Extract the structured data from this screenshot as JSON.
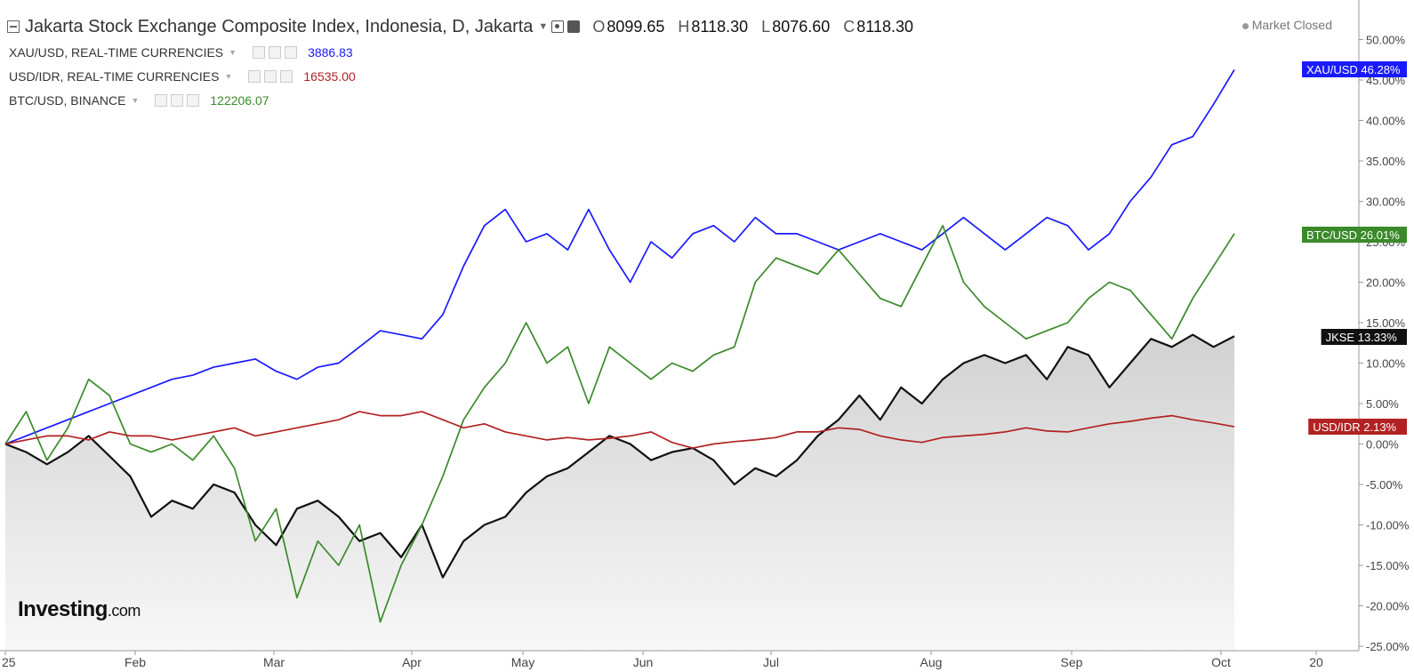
{
  "header": {
    "title": "Jakarta Stock Exchange Composite Index, Indonesia, D, Jakarta",
    "ohlc": [
      {
        "key": "O",
        "value": "8099.65"
      },
      {
        "key": "H",
        "value": "8118.30"
      },
      {
        "key": "L",
        "value": "8076.60"
      },
      {
        "key": "C",
        "value": "8118.30"
      }
    ],
    "status": "Market Closed"
  },
  "legend": [
    {
      "label": "XAU/USD, REAL-TIME CURRENCIES",
      "value": "3886.83",
      "color": "#1a1aff"
    },
    {
      "label": "USD/IDR, REAL-TIME CURRENCIES",
      "value": "16535.00",
      "color": "#b22222"
    },
    {
      "label": "BTC/USD, BINANCE",
      "value": "122206.07",
      "color": "#3a8a2a"
    }
  ],
  "watermark": {
    "brand": "Investing",
    "suffix": ".com"
  },
  "chart_data": {
    "type": "line",
    "x_ticks": [
      "25",
      "Feb",
      "Mar",
      "Apr",
      "May",
      "Jun",
      "Jul",
      "Aug",
      "Sep",
      "Oct",
      "20"
    ],
    "y_ticks": [
      "50.00%",
      "45.00%",
      "40.00%",
      "35.00%",
      "30.00%",
      "25.00%",
      "20.00%",
      "15.00%",
      "10.00%",
      "5.00%",
      "0.00%",
      "-5.00%",
      "-10.00%",
      "-15.00%",
      "-20.00%",
      "-25.00%"
    ],
    "ylim": [
      -25,
      50
    ],
    "grid": false,
    "series": [
      {
        "name": "JKSE",
        "tag": "JKSE",
        "end_label": "13.33%",
        "color": "#111111",
        "fill": true,
        "values": [
          0,
          -1,
          -2.5,
          -1,
          1,
          -1.5,
          -4,
          -9,
          -7,
          -8,
          -5,
          -6,
          -10,
          -12.5,
          -8,
          -7,
          -9,
          -12,
          -11,
          -14,
          -10,
          -16.5,
          -12,
          -10,
          -9,
          -6,
          -4,
          -3,
          -1,
          1,
          0,
          -2,
          -1,
          -0.5,
          -2,
          -5,
          -3,
          -4,
          -2,
          1,
          3,
          6,
          3,
          7,
          5,
          8,
          10,
          11,
          10,
          11,
          8,
          12,
          11,
          7,
          10,
          13,
          12,
          13.5,
          12,
          13.33
        ]
      },
      {
        "name": "XAU/USD",
        "tag": "XAU/USD",
        "end_label": "46.28%",
        "color": "#1a1aff",
        "values": [
          0,
          1,
          2,
          3,
          4,
          5,
          6,
          7,
          8,
          8.5,
          9.5,
          10,
          10.5,
          9,
          8,
          9.5,
          10,
          12,
          14,
          13.5,
          13,
          16,
          22,
          27,
          29,
          25,
          26,
          24,
          29,
          24,
          20,
          25,
          23,
          26,
          27,
          25,
          28,
          26,
          26,
          25,
          24,
          25,
          26,
          25,
          24,
          26,
          28,
          26,
          24,
          26,
          28,
          27,
          24,
          26,
          30,
          33,
          37,
          38,
          42,
          46.28
        ]
      },
      {
        "name": "BTC/USD",
        "tag": "BTC/USD",
        "end_label": "26.01%",
        "color": "#3a8a2a",
        "values": [
          0,
          4,
          -2,
          2,
          8,
          6,
          0,
          -1,
          0,
          -2,
          1,
          -3,
          -12,
          -8,
          -19,
          -12,
          -15,
          -10,
          -22,
          -15,
          -10,
          -4,
          3,
          7,
          10,
          15,
          10,
          12,
          5,
          12,
          10,
          8,
          10,
          9,
          11,
          12,
          20,
          23,
          22,
          21,
          24,
          21,
          18,
          17,
          22,
          27,
          20,
          17,
          15,
          13,
          14,
          15,
          18,
          20,
          19,
          16,
          13,
          18,
          22,
          26.01
        ]
      },
      {
        "name": "USD/IDR",
        "tag": "USD/IDR",
        "end_label": "2.13%",
        "color": "#b22222",
        "values": [
          0,
          0.5,
          1,
          1,
          0.5,
          1.5,
          1,
          1,
          0.5,
          1,
          1.5,
          2,
          1,
          1.5,
          2,
          2.5,
          3,
          4,
          3.5,
          3.5,
          4,
          3,
          2,
          2.5,
          1.5,
          1,
          0.5,
          0.8,
          0.5,
          0.7,
          1,
          1.5,
          0.2,
          -0.5,
          0,
          0.3,
          0.5,
          0.8,
          1.5,
          1.5,
          2,
          1.8,
          1,
          0.5,
          0.2,
          0.8,
          1,
          1.2,
          1.5,
          2,
          1.6,
          1.5,
          2,
          2.5,
          2.8,
          3.2,
          3.5,
          3,
          2.6,
          2.13
        ]
      }
    ]
  }
}
